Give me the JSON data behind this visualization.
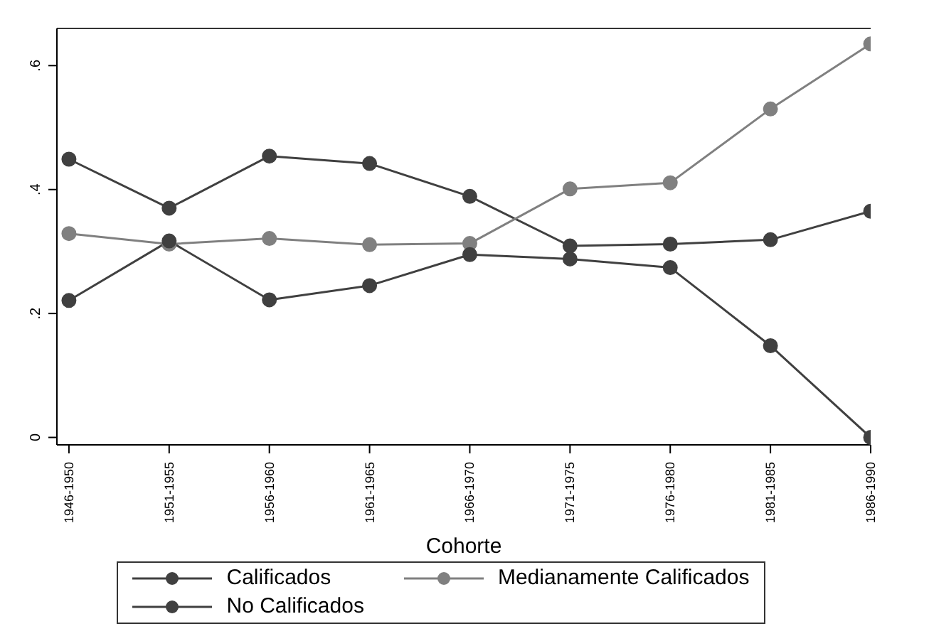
{
  "chart_data": {
    "type": "line",
    "xlabel": "Cohorte",
    "categories": [
      "1946-1950",
      "1951-1955",
      "1956-1960",
      "1961-1965",
      "1966-1970",
      "1971-1975",
      "1976-1980",
      "1981-1985",
      "1986-1990"
    ],
    "series": [
      {
        "name": "Calificados",
        "color": "#404040",
        "values": [
          0.449,
          0.37,
          0.454,
          0.442,
          0.389,
          0.309,
          0.312,
          0.319,
          0.365
        ]
      },
      {
        "name": "Medianamente Calificados",
        "color": "#808080",
        "values": [
          0.329,
          0.312,
          0.321,
          0.311,
          0.313,
          0.401,
          0.411,
          0.53,
          0.635
        ]
      },
      {
        "name": "No Calificados",
        "color": "#404040",
        "values": [
          0.221,
          0.317,
          0.222,
          0.245,
          0.295,
          0.288,
          0.274,
          0.148,
          0
        ]
      }
    ],
    "ylim": [
      -0.012,
      0.66
    ],
    "yticks": [
      {
        "value": 0,
        "label": "0"
      },
      {
        "value": 0.2,
        "label": ".2"
      },
      {
        "value": 0.4,
        "label": ".4"
      },
      {
        "value": 0.6,
        "label": ".6"
      }
    ],
    "grid": false,
    "legend": "bottom",
    "marker": "circle",
    "line_style": "solid"
  }
}
